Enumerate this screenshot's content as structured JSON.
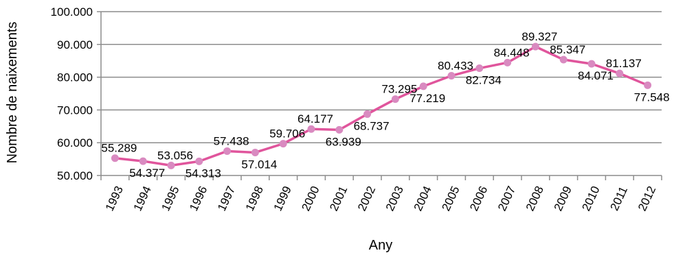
{
  "chart_data": {
    "type": "line",
    "xlabel": "Any",
    "ylabel": "Nombre de naixements",
    "ylim": [
      50000,
      100000
    ],
    "yticks": [
      50000,
      60000,
      70000,
      80000,
      90000,
      100000
    ],
    "ytick_labels": [
      "50.000",
      "60.000",
      "70.000",
      "80.000",
      "90.000",
      "100.000"
    ],
    "grid": "horizontal",
    "line_color": "#e0559c",
    "marker_color": "#d98ac0",
    "categories": [
      "1993",
      "1994",
      "1995",
      "1996",
      "1997",
      "1998",
      "1999",
      "2000",
      "2001",
      "2002",
      "2003",
      "2004",
      "2005",
      "2006",
      "2007",
      "2008",
      "2009",
      "2010",
      "2011",
      "2012"
    ],
    "values": [
      55289,
      54377,
      53056,
      54313,
      57438,
      57014,
      59706,
      64177,
      63939,
      68737,
      73295,
      77219,
      80433,
      82734,
      84448,
      89327,
      85347,
      84071,
      81137,
      77548
    ],
    "data_labels": [
      "55.289",
      "54.377",
      "53.056",
      "54.313",
      "57.438",
      "57.014",
      "59.706",
      "64.177",
      "63.939",
      "68.737",
      "73.295",
      "77.219",
      "80.433",
      "82.734",
      "84.448",
      "89.327",
      "85.347",
      "84.071",
      "81.137",
      "77.548"
    ],
    "label_side": [
      "above",
      "below",
      "above",
      "below",
      "above",
      "below",
      "above",
      "above",
      "below",
      "below",
      "above",
      "below",
      "above",
      "below",
      "above",
      "above",
      "above",
      "below",
      "above",
      "below"
    ]
  }
}
